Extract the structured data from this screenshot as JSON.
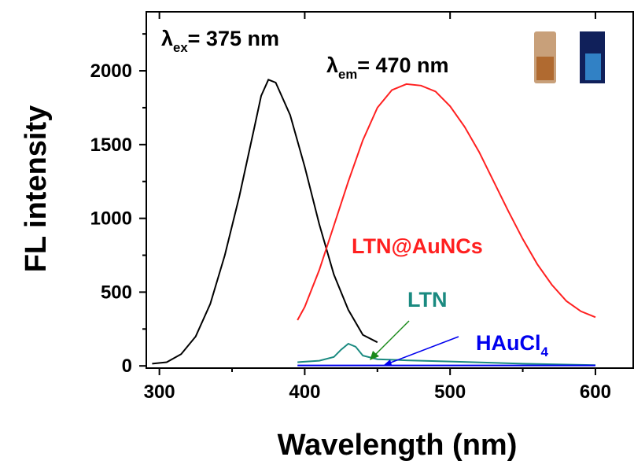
{
  "chart_data": {
    "type": "line",
    "xlabel": "Wavelength (nm)",
    "ylabel": "FL intensity",
    "xlim": [
      291,
      626
    ],
    "ylim": [
      -15,
      2400
    ],
    "xticks": [
      300,
      400,
      500,
      600
    ],
    "yticks": [
      0,
      500,
      1000,
      1500,
      2000
    ],
    "xminor": [
      350,
      450,
      550
    ],
    "yminor": [
      250,
      750,
      1250,
      1750,
      2250
    ],
    "annotations": [
      {
        "parts": [
          "λ",
          "ex",
          "= 375 nm"
        ],
        "color": "#000000"
      },
      {
        "parts": [
          "λ",
          "em",
          "= 470 nm"
        ],
        "color": "#000000"
      }
    ],
    "series": [
      {
        "color": "#000000",
        "x": [
          295,
          305,
          315,
          325,
          335,
          345,
          355,
          365,
          370,
          375,
          380,
          390,
          400,
          410,
          420,
          430,
          440,
          450
        ],
        "values": [
          15,
          25,
          80,
          200,
          420,
          750,
          1150,
          1600,
          1830,
          1940,
          1920,
          1700,
          1350,
          960,
          620,
          380,
          210,
          160
        ]
      },
      {
        "name": "LTN@AuNCs",
        "color": "#ff2020",
        "x": [
          395,
          400,
          410,
          420,
          430,
          440,
          450,
          460,
          470,
          480,
          490,
          500,
          510,
          520,
          530,
          540,
          550,
          560,
          570,
          580,
          590,
          600
        ],
        "values": [
          310,
          400,
          650,
          950,
          1250,
          1530,
          1750,
          1870,
          1910,
          1900,
          1860,
          1760,
          1620,
          1450,
          1250,
          1050,
          860,
          690,
          550,
          440,
          370,
          330
        ]
      },
      {
        "name": "LTN",
        "color": "#1a8a80",
        "x": [
          395,
          410,
          420,
          425,
          430,
          435,
          440,
          450,
          470,
          500,
          550,
          600
        ],
        "values": [
          25,
          35,
          60,
          110,
          150,
          130,
          70,
          45,
          38,
          30,
          15,
          5
        ]
      },
      {
        "name": [
          "HAuCl",
          "4"
        ],
        "color": "#0000ee",
        "x": [
          395,
          450,
          500,
          550,
          600
        ],
        "values": [
          3,
          3,
          3,
          3,
          3
        ]
      }
    ]
  }
}
